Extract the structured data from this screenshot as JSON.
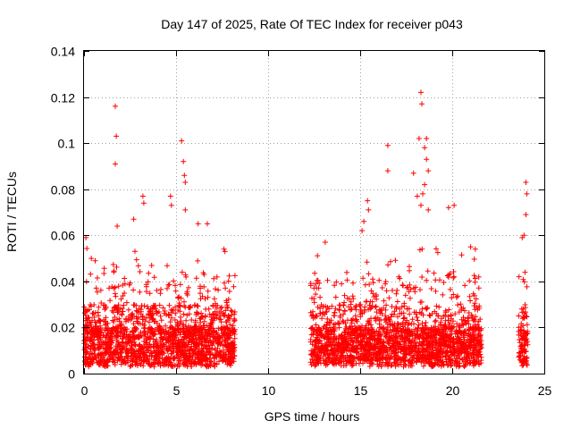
{
  "chart_data": {
    "type": "scatter",
    "title": "Day 147 of 2025, Rate Of TEC Index for receiver p043",
    "xlabel": "GPS time / hours",
    "ylabel": "ROTI / TECUs",
    "xlim": [
      0,
      25
    ],
    "ylim": [
      0,
      0.14
    ],
    "xticks": [
      0,
      5,
      10,
      15,
      20,
      25
    ],
    "xtick_labels": [
      "0",
      "5",
      "10",
      "15",
      "20",
      "25"
    ],
    "yticks": [
      0,
      0.02,
      0.04,
      0.06,
      0.08,
      0.1,
      0.12,
      0.14
    ],
    "ytick_labels": [
      "0",
      "0.02",
      "0.04",
      "0.06",
      "0.08",
      "0.1",
      "0.12",
      "0.14"
    ],
    "grid": true,
    "marker": "plus",
    "color": "#ff0000",
    "series": [
      {
        "name": "ROTI",
        "segments": [
          [
            0.0,
            8.2
          ],
          [
            12.3,
            21.6
          ],
          [
            23.6,
            24.1
          ]
        ],
        "peaks": [
          [
            0.1,
            0.059
          ],
          [
            0.4,
            0.05
          ],
          [
            1.7,
            0.116
          ],
          [
            1.75,
            0.103
          ],
          [
            1.7,
            0.091
          ],
          [
            1.8,
            0.064
          ],
          [
            2.7,
            0.067
          ],
          [
            3.2,
            0.077
          ],
          [
            3.25,
            0.074
          ],
          [
            4.7,
            0.077
          ],
          [
            4.75,
            0.073
          ],
          [
            5.3,
            0.101
          ],
          [
            5.4,
            0.092
          ],
          [
            5.45,
            0.086
          ],
          [
            5.5,
            0.083
          ],
          [
            5.5,
            0.071
          ],
          [
            6.2,
            0.065
          ],
          [
            6.7,
            0.065
          ],
          [
            7.6,
            0.054
          ],
          [
            13.1,
            0.057
          ],
          [
            15.1,
            0.062
          ],
          [
            15.2,
            0.066
          ],
          [
            15.4,
            0.075
          ],
          [
            15.45,
            0.071
          ],
          [
            16.5,
            0.099
          ],
          [
            16.5,
            0.088
          ],
          [
            18.3,
            0.122
          ],
          [
            18.35,
            0.117
          ],
          [
            18.2,
            0.102
          ],
          [
            18.6,
            0.102
          ],
          [
            18.5,
            0.098
          ],
          [
            18.6,
            0.093
          ],
          [
            18.7,
            0.088
          ],
          [
            18.5,
            0.082
          ],
          [
            18.4,
            0.078
          ],
          [
            17.9,
            0.087
          ],
          [
            18.1,
            0.077
          ],
          [
            18.3,
            0.073
          ],
          [
            18.7,
            0.071
          ],
          [
            19.8,
            0.072
          ],
          [
            20.1,
            0.073
          ],
          [
            21.0,
            0.055
          ],
          [
            23.8,
            0.059
          ],
          [
            24.0,
            0.083
          ],
          [
            24.05,
            0.078
          ],
          [
            24.0,
            0.069
          ],
          [
            23.9,
            0.06
          ]
        ]
      }
    ]
  }
}
